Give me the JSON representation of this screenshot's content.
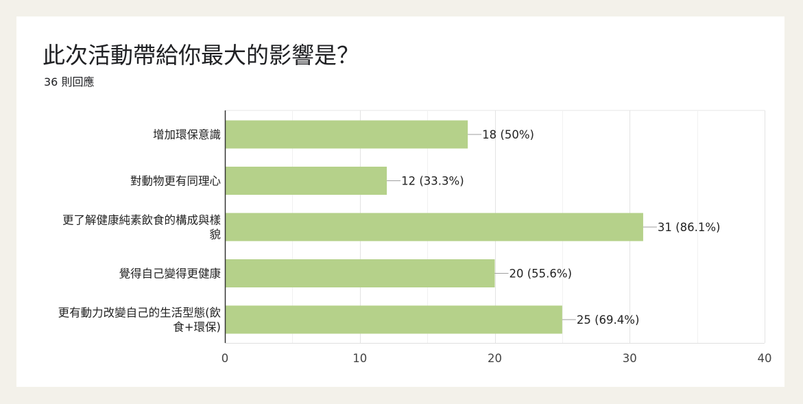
{
  "form": {
    "question": "此次活動帶給你最大的影響是？",
    "responses": "36 則回應"
  },
  "chart_data": {
    "type": "bar",
    "orientation": "horizontal",
    "categories": [
      [
        "增加環保意識"
      ],
      [
        "對動物更有同理心"
      ],
      [
        "更了解健康純素飲食的構成與樣",
        "貌"
      ],
      [
        "覺得自己變得更健康"
      ],
      [
        "更有動力改變自己的生活型態(飲",
        "食+環保)"
      ]
    ],
    "values": [
      18,
      12,
      31,
      20,
      25
    ],
    "value_labels": [
      "18 (50%)",
      "12 (33.3%)",
      "31 (86.1%)",
      "20 (55.6%)",
      "25 (69.4%)"
    ],
    "x_ticks": [
      0,
      10,
      20,
      30,
      40
    ],
    "xlim": [
      0,
      40
    ],
    "grid": true,
    "bar_color": "#b5d18a"
  }
}
